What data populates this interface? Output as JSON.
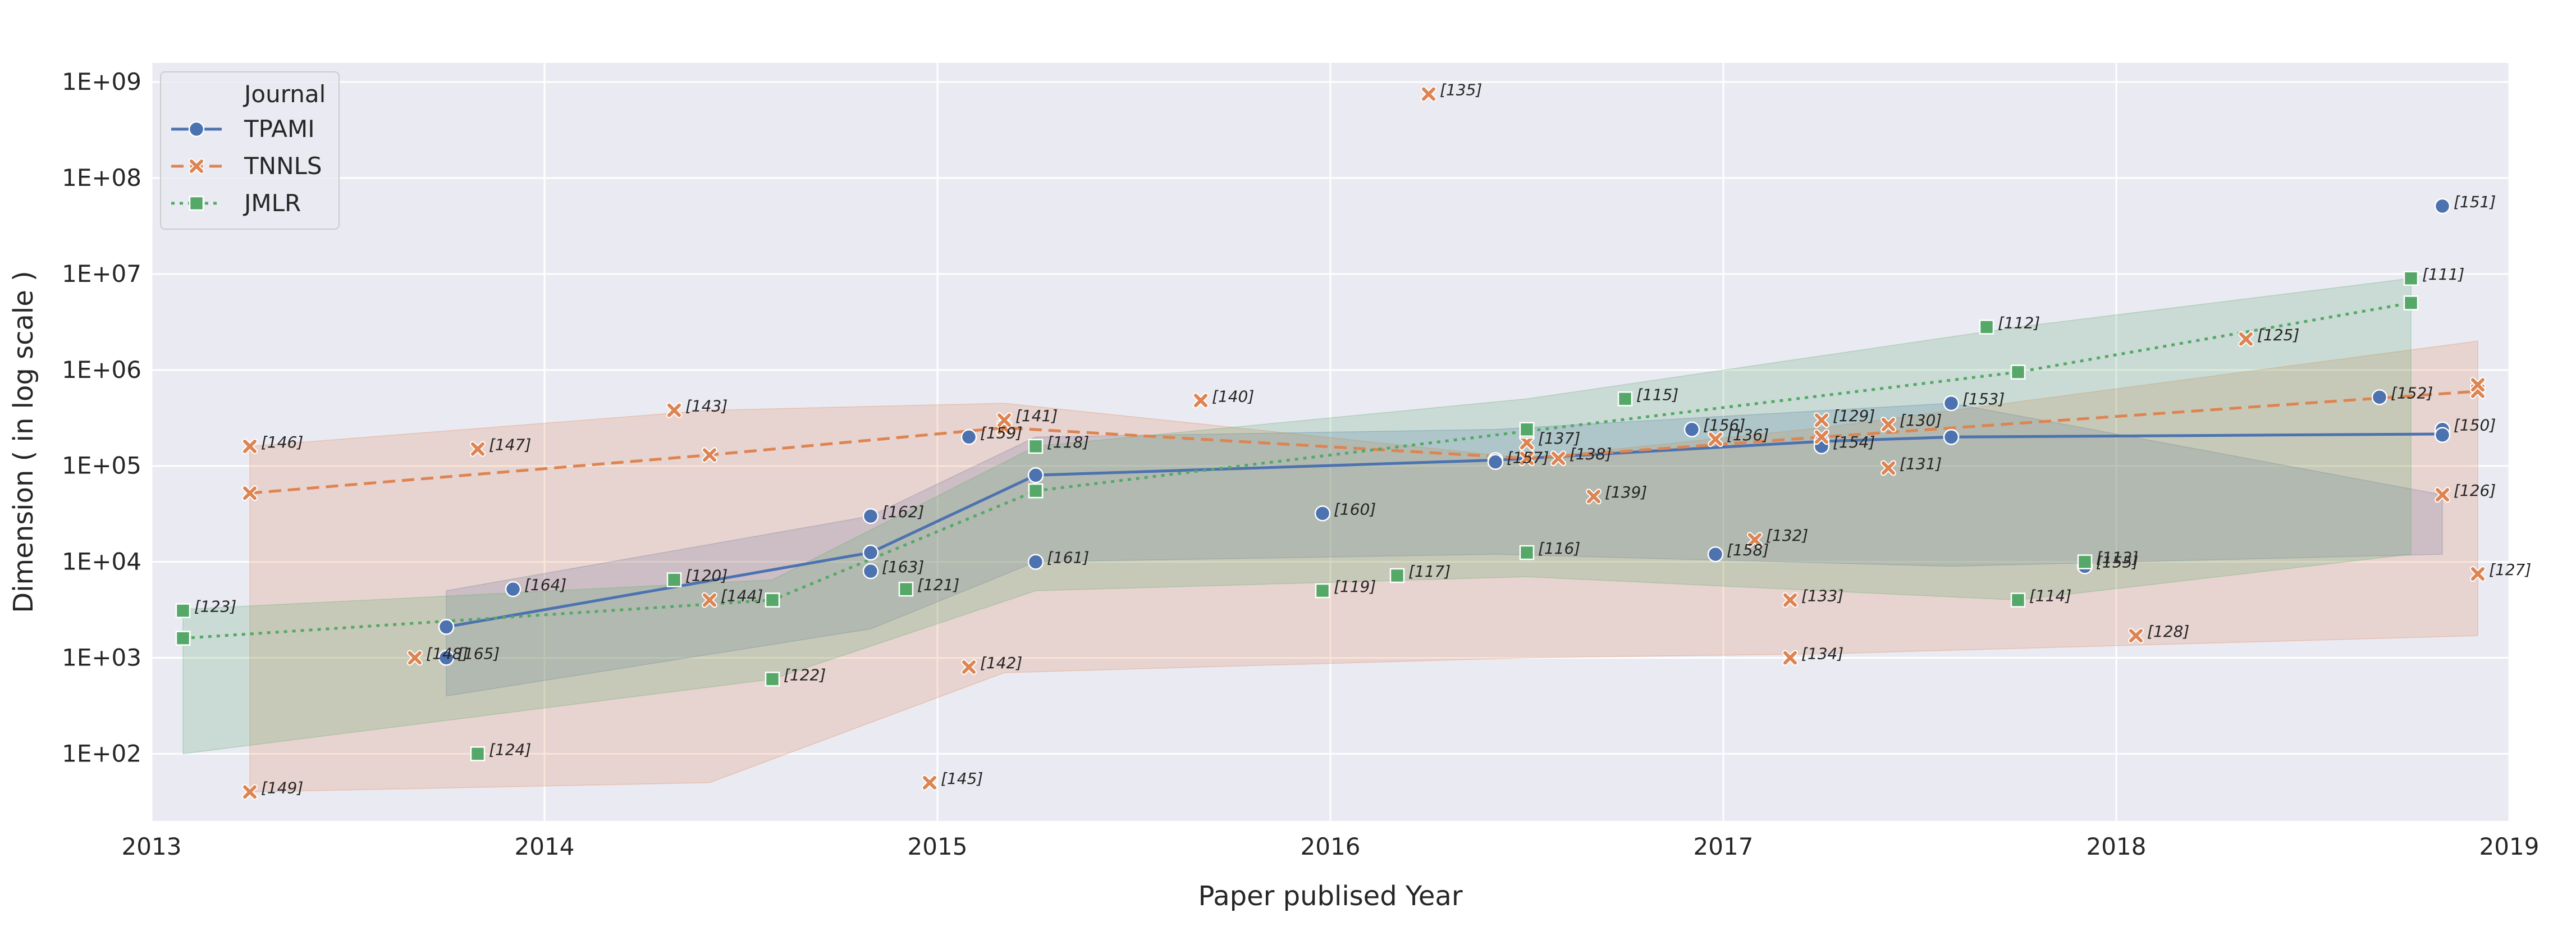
{
  "chart_data": {
    "type": "line",
    "title": "",
    "xlabel": "Paper publised Year",
    "ylabel": "Dimension ( in log scale )",
    "yscale": "log",
    "xlim": [
      2013,
      2019
    ],
    "ylim_exp": [
      1.3,
      9.2
    ],
    "x_ticks": [
      2013,
      2014,
      2015,
      2016,
      2017,
      2018,
      2019
    ],
    "x_tick_labels": [
      "2013",
      "2014",
      "2015",
      "2016",
      "2017",
      "2018",
      "2019"
    ],
    "y_ticks_exp": [
      2,
      3,
      4,
      5,
      6,
      7,
      8,
      9
    ],
    "y_tick_labels": [
      "1E+02",
      "1E+03",
      "1E+04",
      "1E+05",
      "1E+06",
      "1E+07",
      "1E+08",
      "1E+09"
    ],
    "grid": true,
    "legend": {
      "title": "Journal",
      "position": "top-left",
      "entries": [
        "TPAMI",
        "TNNLS",
        "JMLR"
      ]
    },
    "series": [
      {
        "name": "TPAMI",
        "color": "#4c72b0",
        "marker": "circle",
        "linestyle": "solid",
        "points": [
          {
            "x": 2013.75,
            "y": 2100,
            "label": ""
          },
          {
            "x": 2013.75,
            "y": 1000,
            "label": "[165]"
          },
          {
            "x": 2013.92,
            "y": 5200,
            "label": "[164]"
          },
          {
            "x": 2014.83,
            "y": 30000,
            "label": "[162]"
          },
          {
            "x": 2014.83,
            "y": 12500,
            "label": ""
          },
          {
            "x": 2014.83,
            "y": 8000,
            "label": "[163]"
          },
          {
            "x": 2015.08,
            "y": 200000,
            "label": "[159]"
          },
          {
            "x": 2015.25,
            "y": 10000,
            "label": "[161]"
          },
          {
            "x": 2015.25,
            "y": 80000,
            "label": ""
          },
          {
            "x": 2015.98,
            "y": 32000,
            "label": "[160]"
          },
          {
            "x": 2016.42,
            "y": 110000,
            "label": "[157]"
          },
          {
            "x": 2016.92,
            "y": 240000,
            "label": "[156]"
          },
          {
            "x": 2016.98,
            "y": 12000,
            "label": "[158]"
          },
          {
            "x": 2017.25,
            "y": 160000,
            "label": "[154]"
          },
          {
            "x": 2017.58,
            "y": 450000,
            "label": "[153]"
          },
          {
            "x": 2017.58,
            "y": 200000,
            "label": ""
          },
          {
            "x": 2017.92,
            "y": 9000,
            "label": "[155]"
          },
          {
            "x": 2018.67,
            "y": 520000,
            "label": "[152]"
          },
          {
            "x": 2018.83,
            "y": 51000000,
            "label": "[151]"
          },
          {
            "x": 2018.83,
            "y": 240000,
            "label": "[150]"
          },
          {
            "x": 2018.83,
            "y": 210000,
            "label": ""
          }
        ],
        "line": [
          {
            "x": 2013.75,
            "y": 2100
          },
          {
            "x": 2014.83,
            "y": 12500
          },
          {
            "x": 2015.25,
            "y": 80000
          },
          {
            "x": 2016.42,
            "y": 115000
          },
          {
            "x": 2017.25,
            "y": 180000
          },
          {
            "x": 2017.58,
            "y": 200000
          },
          {
            "x": 2018.83,
            "y": 215000
          }
        ],
        "band": [
          {
            "x": 2013.75,
            "lo": 400,
            "hi": 5000
          },
          {
            "x": 2014.83,
            "lo": 2000,
            "hi": 30000
          },
          {
            "x": 2015.25,
            "lo": 10000,
            "hi": 200000
          },
          {
            "x": 2016.42,
            "lo": 12000,
            "hi": 240000
          },
          {
            "x": 2017.58,
            "lo": 9000,
            "hi": 450000
          },
          {
            "x": 2018.83,
            "lo": 12000,
            "hi": 50000
          }
        ]
      },
      {
        "name": "TNNLS",
        "color": "#dd8452",
        "marker": "x",
        "linestyle": "dashed",
        "points": [
          {
            "x": 2013.25,
            "y": 160000,
            "label": "[146]"
          },
          {
            "x": 2013.25,
            "y": 52000,
            "label": ""
          },
          {
            "x": 2013.25,
            "y": 40,
            "label": "[149]"
          },
          {
            "x": 2013.67,
            "y": 1000,
            "label": "[148]"
          },
          {
            "x": 2013.83,
            "y": 150000,
            "label": "[147]"
          },
          {
            "x": 2014.33,
            "y": 380000,
            "label": "[143]"
          },
          {
            "x": 2014.42,
            "y": 4000,
            "label": "[144]"
          },
          {
            "x": 2014.42,
            "y": 130000,
            "label": ""
          },
          {
            "x": 2014.98,
            "y": 50,
            "label": "[145]"
          },
          {
            "x": 2015.08,
            "y": 800,
            "label": "[142]"
          },
          {
            "x": 2015.17,
            "y": 300000,
            "label": "[141]"
          },
          {
            "x": 2015.67,
            "y": 480000,
            "label": "[140]"
          },
          {
            "x": 2016.25,
            "y": 750000000,
            "label": "[135]"
          },
          {
            "x": 2016.5,
            "y": 175000,
            "label": "[137]"
          },
          {
            "x": 2016.58,
            "y": 120000,
            "label": "[138]"
          },
          {
            "x": 2016.67,
            "y": 48000,
            "label": "[139]"
          },
          {
            "x": 2016.98,
            "y": 190000,
            "label": "[136]"
          },
          {
            "x": 2017.08,
            "y": 17000,
            "label": "[132]"
          },
          {
            "x": 2017.17,
            "y": 4000,
            "label": "[133]"
          },
          {
            "x": 2017.17,
            "y": 1000,
            "label": "[134]"
          },
          {
            "x": 2017.25,
            "y": 300000,
            "label": "[129]"
          },
          {
            "x": 2017.42,
            "y": 270000,
            "label": "[130]"
          },
          {
            "x": 2017.42,
            "y": 95000,
            "label": "[131]"
          },
          {
            "x": 2018.05,
            "y": 1700,
            "label": "[128]"
          },
          {
            "x": 2018.33,
            "y": 2100000,
            "label": "[125]"
          },
          {
            "x": 2018.83,
            "y": 50000,
            "label": "[126]"
          },
          {
            "x": 2018.92,
            "y": 7500,
            "label": "[127]"
          },
          {
            "x": 2018.92,
            "y": 700000,
            "label": ""
          }
        ],
        "line": [
          {
            "x": 2013.25,
            "y": 52000
          },
          {
            "x": 2014.42,
            "y": 130000
          },
          {
            "x": 2015.17,
            "y": 250000
          },
          {
            "x": 2016.5,
            "y": 120000
          },
          {
            "x": 2017.25,
            "y": 200000
          },
          {
            "x": 2018.92,
            "y": 600000
          }
        ],
        "band": [
          {
            "x": 2013.25,
            "lo": 40,
            "hi": 160000
          },
          {
            "x": 2014.42,
            "lo": 50,
            "hi": 380000
          },
          {
            "x": 2015.17,
            "lo": 700,
            "hi": 450000
          },
          {
            "x": 2016.5,
            "lo": 1000,
            "hi": 120000
          },
          {
            "x": 2017.25,
            "lo": 1100,
            "hi": 250000
          },
          {
            "x": 2018.92,
            "lo": 1700,
            "hi": 2000000
          }
        ]
      },
      {
        "name": "JMLR",
        "color": "#55a868",
        "marker": "square",
        "linestyle": "dotted",
        "points": [
          {
            "x": 2013.08,
            "y": 3100,
            "label": "[123]"
          },
          {
            "x": 2013.08,
            "y": 1600,
            "label": ""
          },
          {
            "x": 2013.83,
            "y": 100,
            "label": "[124]"
          },
          {
            "x": 2014.33,
            "y": 6500,
            "label": "[120]"
          },
          {
            "x": 2014.58,
            "y": 600,
            "label": "[122]"
          },
          {
            "x": 2014.58,
            "y": 4000,
            "label": ""
          },
          {
            "x": 2014.92,
            "y": 5200,
            "label": "[121]"
          },
          {
            "x": 2015.25,
            "y": 160000,
            "label": "[118]"
          },
          {
            "x": 2015.25,
            "y": 55000,
            "label": ""
          },
          {
            "x": 2015.98,
            "y": 5000,
            "label": "[119]"
          },
          {
            "x": 2016.17,
            "y": 7200,
            "label": "[117]"
          },
          {
            "x": 2016.5,
            "y": 240000,
            "label": ""
          },
          {
            "x": 2016.5,
            "y": 12500,
            "label": "[116]"
          },
          {
            "x": 2016.75,
            "y": 500000,
            "label": "[115]"
          },
          {
            "x": 2017.67,
            "y": 2800000,
            "label": "[112]"
          },
          {
            "x": 2017.75,
            "y": 4000,
            "label": "[114]"
          },
          {
            "x": 2017.75,
            "y": 950000,
            "label": ""
          },
          {
            "x": 2017.92,
            "y": 10000,
            "label": "[113]"
          },
          {
            "x": 2018.75,
            "y": 9000000,
            "label": "[111]"
          },
          {
            "x": 2018.75,
            "y": 5000000,
            "label": ""
          }
        ],
        "line": [
          {
            "x": 2013.08,
            "y": 1600
          },
          {
            "x": 2014.58,
            "y": 4000
          },
          {
            "x": 2015.25,
            "y": 55000
          },
          {
            "x": 2016.5,
            "y": 230000
          },
          {
            "x": 2017.75,
            "y": 950000
          },
          {
            "x": 2018.75,
            "y": 5000000
          }
        ],
        "band": [
          {
            "x": 2013.08,
            "lo": 100,
            "hi": 3200
          },
          {
            "x": 2014.58,
            "lo": 600,
            "hi": 6500
          },
          {
            "x": 2015.25,
            "lo": 5000,
            "hi": 160000
          },
          {
            "x": 2016.5,
            "lo": 7000,
            "hi": 500000
          },
          {
            "x": 2017.75,
            "lo": 4000,
            "hi": 2800000
          },
          {
            "x": 2018.75,
            "lo": 12000,
            "hi": 9000000
          }
        ]
      }
    ]
  }
}
